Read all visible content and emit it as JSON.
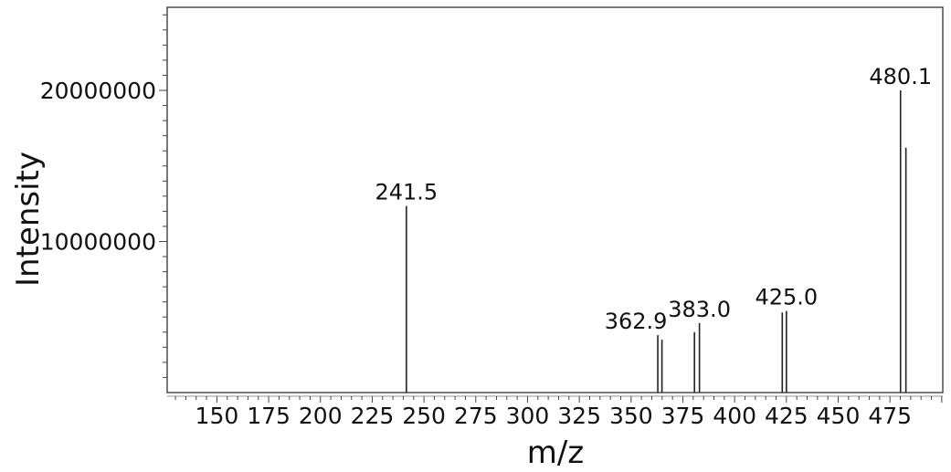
{
  "chart_data": {
    "type": "bar",
    "title": "",
    "xlabel": "m/z",
    "ylabel": "Intensity",
    "xlim": [
      126,
      500.5
    ],
    "ylim": [
      0,
      25500000
    ],
    "grid": false,
    "x_ticks": [
      150,
      175,
      200,
      225,
      250,
      275,
      300,
      325,
      350,
      375,
      400,
      425,
      450,
      475
    ],
    "y_ticks": [
      10000000,
      20000000
    ],
    "y_tick_labels": [
      "10000000",
      "20000000"
    ],
    "peaks": [
      {
        "mz": 241.5,
        "intensity": 12350000,
        "label": "241.5"
      },
      {
        "mz": 362.9,
        "intensity": 3800000,
        "label": "362.9"
      },
      {
        "mz": 364.9,
        "intensity": 3500000,
        "label": ""
      },
      {
        "mz": 380.6,
        "intensity": 4000000,
        "label": ""
      },
      {
        "mz": 383.0,
        "intensity": 4600000,
        "label": "383.0"
      },
      {
        "mz": 423.0,
        "intensity": 5300000,
        "label": ""
      },
      {
        "mz": 425.0,
        "intensity": 5400000,
        "label": "425.0"
      },
      {
        "mz": 480.1,
        "intensity": 20000000,
        "label": "480.1"
      },
      {
        "mz": 482.7,
        "intensity": 16200000,
        "label": ""
      }
    ],
    "colors": {
      "peak": "#222222",
      "axis": "#333333"
    }
  }
}
